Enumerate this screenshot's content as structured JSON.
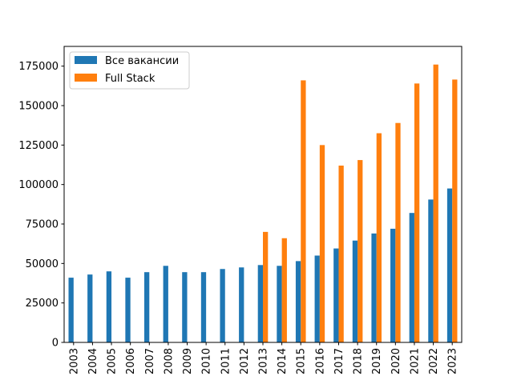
{
  "chart_data": {
    "type": "bar",
    "title": "",
    "xlabel": "",
    "ylabel": "",
    "ylim": [
      0,
      187500
    ],
    "yticks": [
      0,
      25000,
      50000,
      75000,
      100000,
      125000,
      150000,
      175000
    ],
    "categories": [
      "2003",
      "2004",
      "2005",
      "2006",
      "2007",
      "2008",
      "2009",
      "2010",
      "2011",
      "2012",
      "2013",
      "2014",
      "2015",
      "2016",
      "2017",
      "2018",
      "2019",
      "2020",
      "2021",
      "2022",
      "2023"
    ],
    "series": [
      {
        "name": "Все вакансии",
        "color": "#1f77b4",
        "values": [
          41000,
          43000,
          45000,
          41000,
          44500,
          48500,
          44500,
          44500,
          46500,
          47500,
          49000,
          48500,
          51500,
          55000,
          59500,
          64500,
          69000,
          72000,
          82000,
          90500,
          97500
        ]
      },
      {
        "name": "Full Stack",
        "color": "#ff7f0e",
        "values": [
          null,
          null,
          null,
          null,
          null,
          null,
          null,
          null,
          null,
          null,
          70000,
          66000,
          166000,
          125000,
          112000,
          115500,
          132500,
          139000,
          164000,
          176000,
          166500
        ]
      }
    ],
    "legend": "top-left",
    "grid": false
  }
}
